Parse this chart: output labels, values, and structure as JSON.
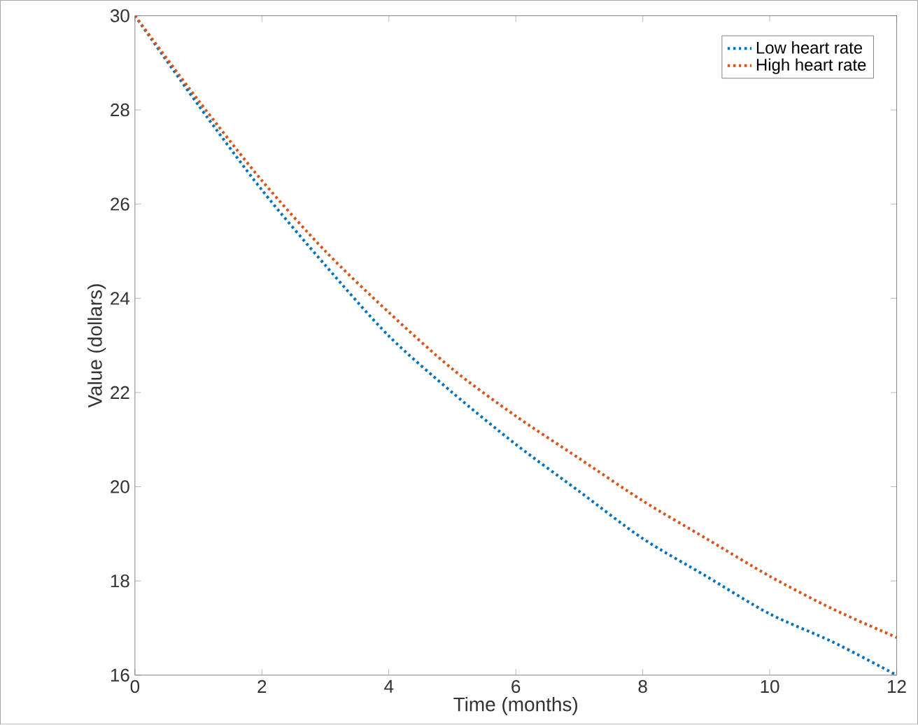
{
  "chart_data": {
    "type": "line",
    "xlabel": "Time (months)",
    "ylabel": "Value (dollars)",
    "x": [
      0,
      1,
      2,
      3,
      4,
      5,
      6,
      7,
      8,
      9,
      10,
      11,
      12
    ],
    "series": [
      {
        "name": "Low heart rate",
        "color": "#0072bd",
        "values": [
          30,
          28.1,
          26.3,
          24.7,
          23.2,
          22.0,
          20.9,
          19.9,
          18.9,
          18.1,
          17.3,
          16.7,
          16.0
        ]
      },
      {
        "name": "High heart rate",
        "color": "#d95319",
        "values": [
          30,
          28.2,
          26.5,
          25.0,
          23.7,
          22.5,
          21.5,
          20.6,
          19.7,
          18.9,
          18.1,
          17.4,
          16.8
        ]
      }
    ],
    "xlim": [
      0,
      12
    ],
    "ylim": [
      16,
      30
    ],
    "xticks": [
      0,
      2,
      4,
      6,
      8,
      10,
      12
    ],
    "yticks": [
      16,
      18,
      20,
      22,
      24,
      26,
      28,
      30
    ],
    "grid": false,
    "legend": "top right",
    "line_style": "dotted",
    "marker": "none"
  }
}
